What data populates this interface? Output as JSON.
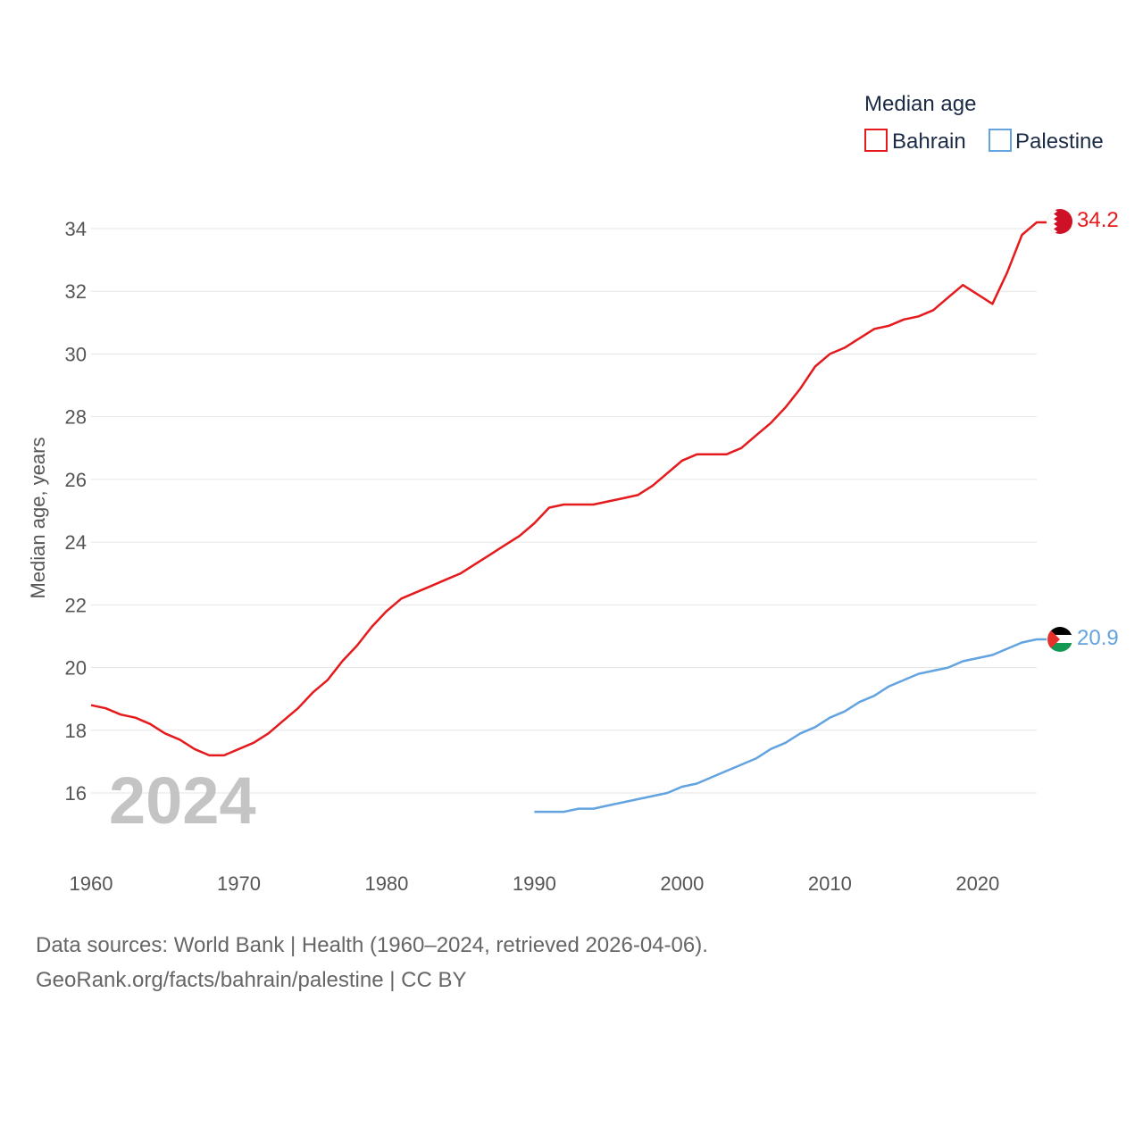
{
  "colors": {
    "bahrain": "#e41a1c",
    "palestine": "#62a3e0",
    "grid": "#e6e6e6",
    "text": "#555555",
    "watermark": "#c4c4c4"
  },
  "legend": {
    "title": "Median age",
    "items": [
      "Bahrain",
      "Palestine"
    ]
  },
  "watermark_year": "2024",
  "footer": {
    "line1": "Data sources: World Bank | Health (1960–2024, retrieved 2026-04-06).",
    "line2": "GeoRank.org/facts/bahrain/palestine | CC BY"
  },
  "chart_data": {
    "type": "line",
    "title": "Median age",
    "xlabel": "",
    "ylabel": "Median age, years",
    "xlim": [
      1960,
      2024
    ],
    "ylim": [
      14.5,
      35
    ],
    "xticks": [
      1960,
      1970,
      1980,
      1990,
      2000,
      2010,
      2020
    ],
    "yticks": [
      16,
      18,
      20,
      22,
      24,
      26,
      28,
      30,
      32,
      34
    ],
    "grid": true,
    "legend_position": "top-right",
    "series": [
      {
        "name": "Bahrain",
        "color": "#e41a1c",
        "end_label": "34.2",
        "x": [
          1960,
          1961,
          1962,
          1963,
          1964,
          1965,
          1966,
          1967,
          1968,
          1969,
          1970,
          1971,
          1972,
          1973,
          1974,
          1975,
          1976,
          1977,
          1978,
          1979,
          1980,
          1981,
          1982,
          1983,
          1984,
          1985,
          1986,
          1987,
          1988,
          1989,
          1990,
          1991,
          1992,
          1993,
          1994,
          1995,
          1996,
          1997,
          1998,
          1999,
          2000,
          2001,
          2002,
          2003,
          2004,
          2005,
          2006,
          2007,
          2008,
          2009,
          2010,
          2011,
          2012,
          2013,
          2014,
          2015,
          2016,
          2017,
          2018,
          2019,
          2020,
          2021,
          2022,
          2023,
          2024
        ],
        "values": [
          18.8,
          18.7,
          18.5,
          18.4,
          18.2,
          17.9,
          17.7,
          17.4,
          17.2,
          17.2,
          17.4,
          17.6,
          17.9,
          18.3,
          18.7,
          19.2,
          19.6,
          20.2,
          20.7,
          21.3,
          21.8,
          22.2,
          22.4,
          22.6,
          22.8,
          23.0,
          23.3,
          23.6,
          23.9,
          24.2,
          24.6,
          25.1,
          25.2,
          25.2,
          25.2,
          25.3,
          25.4,
          25.5,
          25.8,
          26.2,
          26.6,
          26.8,
          26.8,
          26.8,
          27.0,
          27.4,
          27.8,
          28.3,
          28.9,
          29.6,
          30.0,
          30.2,
          30.5,
          30.8,
          30.9,
          31.1,
          31.2,
          31.4,
          31.8,
          32.2,
          31.9,
          31.6,
          32.6,
          33.8,
          34.2
        ]
      },
      {
        "name": "Palestine",
        "color": "#62a3e0",
        "end_label": "20.9",
        "x": [
          1990,
          1991,
          1992,
          1993,
          1994,
          1995,
          1996,
          1997,
          1998,
          1999,
          2000,
          2001,
          2002,
          2003,
          2004,
          2005,
          2006,
          2007,
          2008,
          2009,
          2010,
          2011,
          2012,
          2013,
          2014,
          2015,
          2016,
          2017,
          2018,
          2019,
          2020,
          2021,
          2022,
          2023,
          2024
        ],
        "values": [
          15.4,
          15.4,
          15.4,
          15.5,
          15.5,
          15.6,
          15.7,
          15.8,
          15.9,
          16.0,
          16.2,
          16.3,
          16.5,
          16.7,
          16.9,
          17.1,
          17.4,
          17.6,
          17.9,
          18.1,
          18.4,
          18.6,
          18.9,
          19.1,
          19.4,
          19.6,
          19.8,
          19.9,
          20.0,
          20.2,
          20.3,
          20.4,
          20.6,
          20.8,
          20.9
        ]
      }
    ]
  }
}
